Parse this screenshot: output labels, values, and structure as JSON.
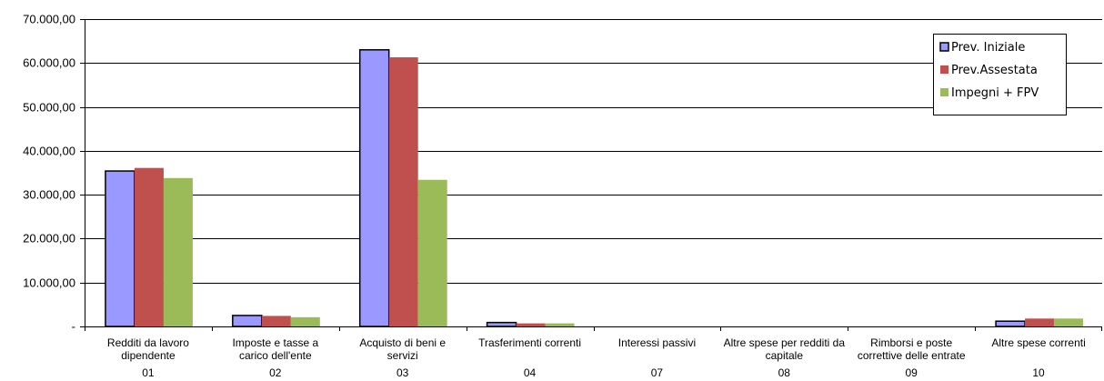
{
  "chart_data": {
    "type": "bar",
    "title": "",
    "xlabel": "",
    "ylabel": "",
    "ylim": [
      0,
      70000
    ],
    "yticks": [
      0,
      10000,
      20000,
      30000,
      40000,
      50000,
      60000,
      70000
    ],
    "ytick_labels": [
      "-",
      "10.000,00",
      "20.000,00",
      "30.000,00",
      "40.000,00",
      "50.000,00",
      "60.000,00",
      "70.000,00"
    ],
    "grid": true,
    "legend_position": "top-right",
    "categories": [
      {
        "label": "Redditi da lavoro dipendente",
        "code": "01"
      },
      {
        "label": "Imposte e tasse a carico dell'ente",
        "code": "02"
      },
      {
        "label": "Acquisto di beni e servizi",
        "code": "03"
      },
      {
        "label": "Trasferimenti correnti",
        "code": "04"
      },
      {
        "label": "Interessi passivi",
        "code": "07"
      },
      {
        "label": "Altre spese per redditi da capitale",
        "code": "08"
      },
      {
        "label": "Rimborsi e poste correttive delle entrate",
        "code": "09"
      },
      {
        "label": "Altre spese correnti",
        "code": "10"
      }
    ],
    "series": [
      {
        "name": "Prev. Iniziale",
        "color": "#9999ff",
        "values": [
          35400,
          2500,
          63000,
          900,
          0,
          0,
          0,
          1200
        ]
      },
      {
        "name": "Prev.Assestata",
        "color": "#c0504d",
        "values": [
          36100,
          2400,
          61300,
          700,
          0,
          0,
          0,
          1800
        ]
      },
      {
        "name": "Impegni + FPV",
        "color": "#9bbb59",
        "values": [
          33800,
          2100,
          33400,
          700,
          0,
          0,
          0,
          1800
        ]
      }
    ]
  }
}
